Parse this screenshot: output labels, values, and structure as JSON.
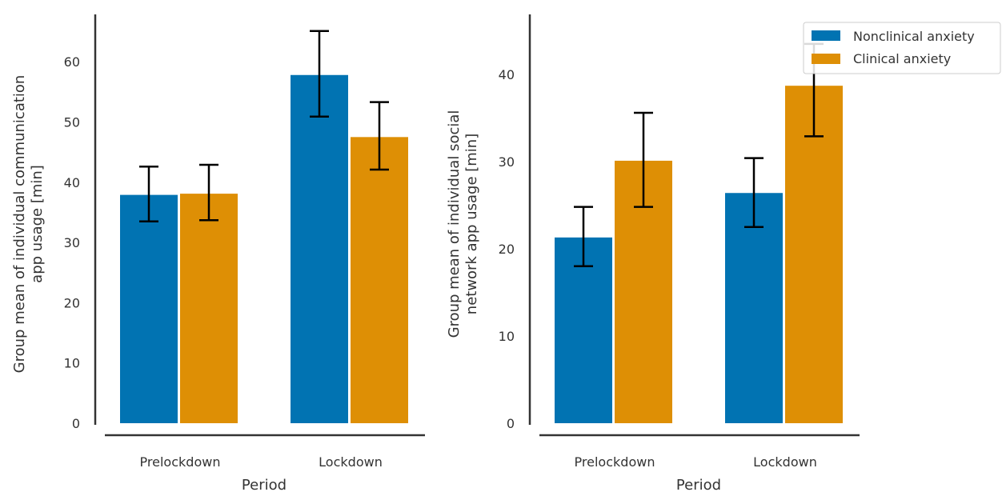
{
  "chart_data": [
    {
      "type": "bar",
      "xlabel": "Period",
      "ylabel_lines": [
        "Group mean of individual communication",
        "app usage [min]"
      ],
      "categories": [
        "Prelockdown",
        "Lockdown"
      ],
      "ylim": [
        0,
        69
      ],
      "yticks": [
        0,
        10,
        20,
        30,
        40,
        50,
        60
      ],
      "series": [
        {
          "name": "Nonclinical anxiety",
          "values": [
            37.9,
            57.8
          ],
          "err_low": [
            33.5,
            50.9
          ],
          "err_high": [
            42.6,
            65.1
          ]
        },
        {
          "name": "Clinical anxiety",
          "values": [
            38.1,
            47.5
          ],
          "err_low": [
            33.7,
            42.1
          ],
          "err_high": [
            42.9,
            53.3
          ]
        }
      ],
      "legend": false,
      "grid": false
    },
    {
      "type": "bar",
      "xlabel": "Period",
      "ylabel_lines": [
        "Group mean of individual social",
        "network app usage [min]"
      ],
      "categories": [
        "Prelockdown",
        "Lockdown"
      ],
      "ylim": [
        0,
        47
      ],
      "yticks": [
        0,
        10,
        20,
        30,
        40
      ],
      "series": [
        {
          "name": "Nonclinical anxiety",
          "values": [
            21.3,
            26.4
          ],
          "err_low": [
            18.0,
            22.5
          ],
          "err_high": [
            24.8,
            30.4
          ]
        },
        {
          "name": "Clinical anxiety",
          "values": [
            30.1,
            38.7
          ],
          "err_low": [
            24.8,
            32.9
          ],
          "err_high": [
            35.6,
            43.5
          ]
        }
      ],
      "legend": true,
      "legend_position": "top-right",
      "grid": false
    }
  ],
  "colors": {
    "Nonclinical anxiety": "#0173b2",
    "Clinical anxiety": "#de8f05"
  },
  "legend_items": [
    "Nonclinical anxiety",
    "Clinical anxiety"
  ]
}
